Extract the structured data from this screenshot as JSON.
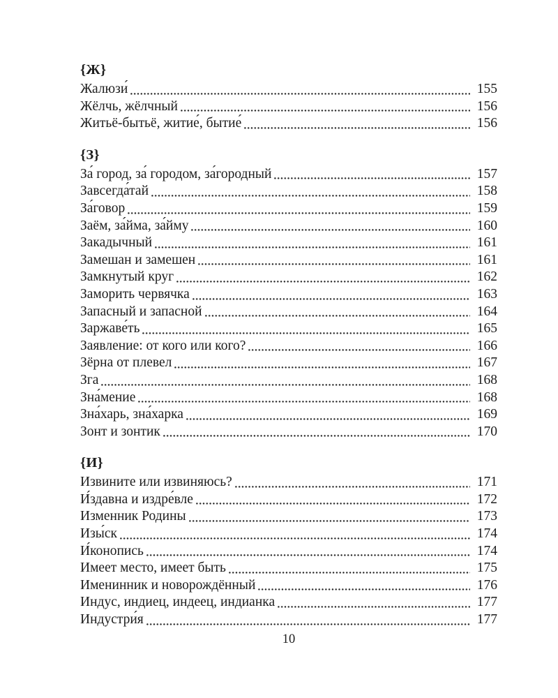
{
  "page_number": "10",
  "colors": {
    "text": "#1d1d1d",
    "background": "#ffffff",
    "leader_dots": "#272727"
  },
  "sections": [
    {
      "heading": "{Ж}",
      "entries": [
        {
          "label": "Жалюзи́",
          "page": "155"
        },
        {
          "label": "Жёлчь, жёлчный",
          "page": "156"
        },
        {
          "label": "Житьё-бытьё, житие́, бытие́",
          "page": "156"
        }
      ]
    },
    {
      "heading": "{З}",
      "entries": [
        {
          "label": "За́ город, за́ городом, за́городный",
          "page": "157"
        },
        {
          "label": "Завсегда́тай",
          "page": "158"
        },
        {
          "label": "За́говор",
          "page": "159"
        },
        {
          "label": "Заём, за́йма, за́йму",
          "page": "160"
        },
        {
          "label": "Закадычный",
          "page": "161"
        },
        {
          "label": "Замешан и замешен",
          "page": "161"
        },
        {
          "label": "Замкнутый круг",
          "page": "162"
        },
        {
          "label": "Заморить червячка",
          "page": "163"
        },
        {
          "label": "Запасный и запасной",
          "page": "164"
        },
        {
          "label": "Заржаве́ть",
          "page": "165"
        },
        {
          "label": "Заявление: от кого или кого?",
          "page": "166"
        },
        {
          "label": "Зёрна от плевел",
          "page": "167"
        },
        {
          "label": "Зга",
          "page": "168"
        },
        {
          "label": "Зна́мение",
          "page": "168"
        },
        {
          "label": "Зна́харь, зна́харка",
          "page": "169"
        },
        {
          "label": "Зонт и зонтик",
          "page": "170"
        }
      ]
    },
    {
      "heading": "{И}",
      "entries": [
        {
          "label": "Извините или извиняюсь?",
          "page": "171"
        },
        {
          "label": "И́здавна и издре́вле",
          "page": "172"
        },
        {
          "label": "Изменник Родины",
          "page": "173"
        },
        {
          "label": "Изы́ск",
          "page": "174"
        },
        {
          "label": "И́конопись",
          "page": "174"
        },
        {
          "label": "Имеет место, имеет быть",
          "page": "175"
        },
        {
          "label": "Именинник и новорождённый",
          "page": "176"
        },
        {
          "label": "Индус, индиец, индеец, индианка",
          "page": "177"
        },
        {
          "label": "Индустри́я",
          "page": "177"
        }
      ]
    }
  ]
}
